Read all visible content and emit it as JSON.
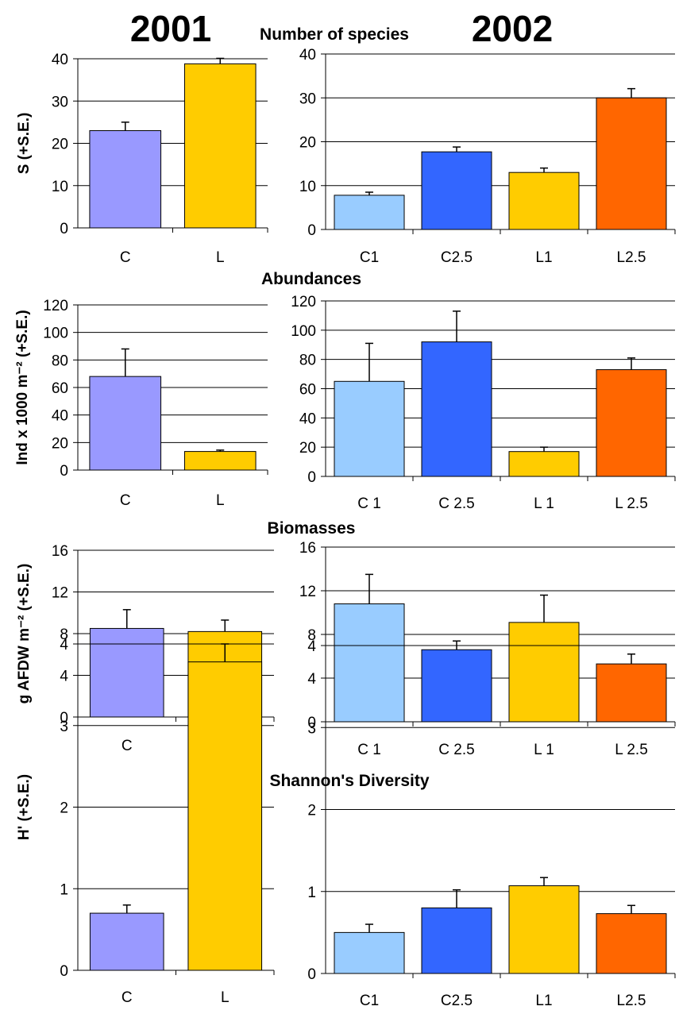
{
  "header": {
    "year_left": "2001",
    "year_right": "2002"
  },
  "chart_data": [
    {
      "type": "bar",
      "title": "Number of species",
      "year": "2001",
      "ylabel": "S (+S.E.)",
      "xlabel": "",
      "ylim": [
        0,
        40
      ],
      "yticks": [
        0,
        10,
        20,
        30,
        40
      ],
      "grid": true,
      "categories": [
        "C",
        "L"
      ],
      "values": [
        23,
        38.8
      ],
      "errors": [
        2,
        1.3
      ],
      "colors": [
        "#9999ff",
        "#ffcc00"
      ]
    },
    {
      "type": "bar",
      "title": "",
      "year": "2002",
      "ylabel": "",
      "xlabel": "",
      "ylim": [
        0,
        40
      ],
      "yticks": [
        0,
        10,
        20,
        30,
        40
      ],
      "grid": true,
      "categories": [
        "C1",
        "C2.5",
        "L1",
        "L2.5"
      ],
      "values": [
        7.8,
        17.7,
        13,
        30
      ],
      "errors": [
        0.7,
        1.1,
        1,
        2.1
      ],
      "colors": [
        "#99ccff",
        "#3366ff",
        "#ffcc00",
        "#ff6600"
      ]
    },
    {
      "type": "bar",
      "title": "Abundances",
      "year": "2001",
      "ylabel": "Ind x 1000 m⁻² (+S.E.)",
      "xlabel": "",
      "ylim": [
        0,
        120
      ],
      "yticks": [
        0,
        20,
        40,
        60,
        80,
        100,
        120
      ],
      "grid": true,
      "categories": [
        "C",
        "L"
      ],
      "values": [
        68,
        13.5
      ],
      "errors": [
        20,
        1
      ],
      "colors": [
        "#9999ff",
        "#ffcc00"
      ]
    },
    {
      "type": "bar",
      "title": "",
      "year": "2002",
      "ylabel": "",
      "xlabel": "",
      "ylim": [
        0,
        120
      ],
      "yticks": [
        0,
        20,
        40,
        60,
        80,
        100,
        120
      ],
      "grid": true,
      "categories": [
        "C 1",
        "C 2.5",
        "L 1",
        "L 2.5"
      ],
      "values": [
        65,
        92,
        17,
        73
      ],
      "errors": [
        26,
        21,
        3,
        8
      ],
      "colors": [
        "#99ccff",
        "#3366ff",
        "#ffcc00",
        "#ff6600"
      ]
    },
    {
      "type": "bar",
      "title": "Biomasses",
      "year": "2001",
      "ylabel": "g AFDW m⁻²  (+S.E.)",
      "xlabel": "",
      "ylim": [
        0,
        16
      ],
      "yticks": [
        0,
        4,
        8,
        12,
        16
      ],
      "grid": true,
      "categories": [
        "C",
        "L"
      ],
      "values": [
        8.5,
        8.2
      ],
      "errors": [
        1.8,
        1.1
      ],
      "colors": [
        "#9999ff",
        "#ffcc00"
      ]
    },
    {
      "type": "bar",
      "title": "",
      "year": "2002",
      "ylabel": "",
      "xlabel": "",
      "ylim": [
        0,
        16
      ],
      "yticks": [
        0,
        4,
        8,
        12,
        16
      ],
      "grid": true,
      "categories": [
        "C 1",
        "C 2.5",
        "L 1",
        "L 2.5"
      ],
      "values": [
        10.8,
        6.6,
        9.1,
        5.3
      ],
      "errors": [
        2.7,
        0.8,
        2.5,
        0.9
      ],
      "colors": [
        "#99ccff",
        "#3366ff",
        "#ffcc00",
        "#ff6600"
      ]
    },
    {
      "type": "bar",
      "title": "Shannon's Diversity",
      "year": "2001",
      "ylabel": "H' (+S.E.)",
      "xlabel": "",
      "ylim": [
        0,
        4
      ],
      "yticks": [
        0,
        1,
        2,
        3,
        4
      ],
      "grid": true,
      "categories": [
        "C",
        "L"
      ],
      "values": [
        0.7,
        3.78
      ],
      "errors": [
        0.1,
        0.22
      ],
      "colors": [
        "#9999ff",
        "#ffcc00"
      ]
    },
    {
      "type": "bar",
      "title": "",
      "year": "2002",
      "ylabel": "",
      "xlabel": "",
      "ylim": [
        0,
        4
      ],
      "yticks": [
        0,
        1,
        2,
        3,
        4
      ],
      "grid": true,
      "categories": [
        "C1",
        "C2.5",
        "L1",
        "L2.5"
      ],
      "values": [
        0.5,
        0.8,
        1.07,
        0.73
      ],
      "errors": [
        0.1,
        0.22,
        0.1,
        0.1
      ],
      "colors": [
        "#99ccff",
        "#3366ff",
        "#ffcc00",
        "#ff6600"
      ]
    }
  ]
}
